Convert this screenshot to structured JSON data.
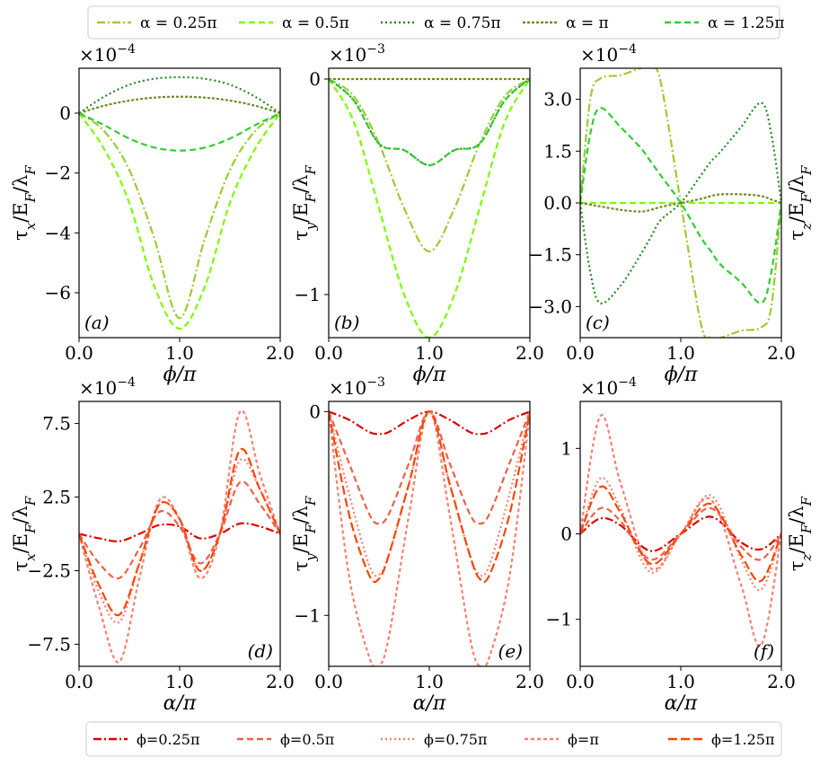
{
  "legend_top": {
    "entries": [
      {
        "label": "α = 0.25π",
        "color": "#9ACD32",
        "dash": "dashdot"
      },
      {
        "label": "α = 0.5π",
        "color": "#7CFC00",
        "dash": "dashed"
      },
      {
        "label": "α = 0.75π",
        "color": "#228B22",
        "dash": "dotted"
      },
      {
        "label": "α = π",
        "color": "#6B8E23",
        "dash": "dotted_dense"
      },
      {
        "label": "α = 1.25π",
        "color": "#32CD32",
        "dash": "dashed"
      }
    ]
  },
  "legend_bottom": {
    "entries": [
      {
        "label": "ϕ=0.25π",
        "color": "#DD0000",
        "dash": "dashdot"
      },
      {
        "label": "ϕ=0.5π",
        "color": "#F06048",
        "dash": "dashed"
      },
      {
        "label": "ϕ=0.75π",
        "color": "#FA8072",
        "dash": "dotted"
      },
      {
        "label": "ϕ=π",
        "color": "#FA8072",
        "dash": "dashed_fine"
      },
      {
        "label": "ϕ=1.25π",
        "color": "#FF4500",
        "dash": "dashed_long"
      }
    ]
  },
  "chart_data": [
    {
      "id": "a",
      "type": "line",
      "panel_label": "(a)",
      "xlabel": "ϕ/π",
      "ylabel": "τx/EF/λF",
      "ylabel_side": "left",
      "multiplier": "×10",
      "multiplier_exp": "−4",
      "xlim": [
        0,
        2
      ],
      "ylim": [
        -7.5,
        1.5
      ],
      "xticks": [
        0,
        1,
        2
      ],
      "xtick_labels": [
        "0.0",
        "1.0",
        "2.0"
      ],
      "yticks": [
        0,
        -2,
        -4,
        -6
      ],
      "ytick_labels": [
        "0",
        "−2",
        "−4",
        "−6"
      ],
      "x": [
        0,
        0.25,
        0.5,
        0.75,
        1.0,
        1.25,
        1.5,
        1.75,
        2.0
      ],
      "series": [
        {
          "name": "α = 0.25π",
          "values": [
            0,
            -0.6,
            -1.9,
            -4.2,
            -6.85,
            -4.2,
            -1.9,
            -0.6,
            0
          ]
        },
        {
          "name": "α = 0.5π",
          "values": [
            0,
            -1.2,
            -3.0,
            -5.8,
            -7.2,
            -5.8,
            -3.0,
            -1.2,
            0
          ]
        },
        {
          "name": "α = 0.75π",
          "values": [
            0,
            0.55,
            0.95,
            1.15,
            1.2,
            1.15,
            0.95,
            0.55,
            0
          ]
        },
        {
          "name": "α = π",
          "values": [
            0,
            0.25,
            0.42,
            0.52,
            0.55,
            0.52,
            0.42,
            0.25,
            0
          ]
        },
        {
          "name": "α = 1.25π",
          "values": [
            0,
            -0.4,
            -0.85,
            -1.15,
            -1.25,
            -1.15,
            -0.85,
            -0.4,
            0
          ]
        }
      ]
    },
    {
      "id": "b",
      "type": "line",
      "panel_label": "(b)",
      "xlabel": "ϕ/π",
      "ylabel": "τy/EF/λF",
      "ylabel_side": "left",
      "multiplier": "×10",
      "multiplier_exp": "−3",
      "xlim": [
        0,
        2
      ],
      "ylim": [
        -1.2,
        0.05
      ],
      "xticks": [
        0,
        1,
        2
      ],
      "xtick_labels": [
        "0.0",
        "1.0",
        "2.0"
      ],
      "yticks": [
        0,
        -1
      ],
      "ytick_labels": [
        "0",
        "−1"
      ],
      "x": [
        0,
        0.25,
        0.5,
        0.75,
        1.0,
        1.25,
        1.5,
        1.75,
        2.0
      ],
      "series": [
        {
          "name": "α = 0.25π",
          "values": [
            0,
            -0.08,
            -0.3,
            -0.6,
            -0.8,
            -0.6,
            -0.3,
            -0.08,
            0
          ]
        },
        {
          "name": "α = 0.5π",
          "values": [
            0,
            -0.2,
            -0.6,
            -1.0,
            -1.2,
            -1.0,
            -0.6,
            -0.2,
            0
          ]
        },
        {
          "name": "α = 0.75π",
          "values": [
            0,
            -0.1,
            -0.3,
            -0.33,
            -0.4,
            -0.33,
            -0.3,
            -0.1,
            0
          ]
        },
        {
          "name": "α = π",
          "values": [
            0,
            0,
            0,
            0,
            0,
            0,
            0,
            0,
            0
          ]
        },
        {
          "name": "α = 1.25π",
          "values": [
            0,
            -0.1,
            -0.3,
            -0.33,
            -0.4,
            -0.33,
            -0.3,
            -0.1,
            0
          ]
        }
      ]
    },
    {
      "id": "c",
      "type": "line",
      "panel_label": "(c)",
      "xlabel": "ϕ/π",
      "ylabel": "τz/EF/λF",
      "ylabel_side": "right",
      "multiplier": "×10",
      "multiplier_exp": "−4",
      "xlim": [
        0,
        2
      ],
      "ylim": [
        -3.9,
        3.9
      ],
      "xticks": [
        0,
        1,
        2
      ],
      "xtick_labels": [
        "0.0",
        "1.0",
        "2.0"
      ],
      "yticks": [
        3,
        1.5,
        0,
        -1.5,
        -3
      ],
      "ytick_labels": [
        "3.0",
        "1.5",
        "0.0",
        "−1.5",
        "−3.0"
      ],
      "x": [
        0,
        0.1,
        0.2,
        0.4,
        0.6,
        0.7,
        0.8,
        1.0,
        1.2,
        1.3,
        1.4,
        1.6,
        1.8,
        1.9,
        2.0
      ],
      "series": [
        {
          "name": "α = 0.25π",
          "values": [
            0,
            3.0,
            3.6,
            3.7,
            3.9,
            3.9,
            3.5,
            0,
            -3.5,
            -3.9,
            -3.9,
            -3.7,
            -3.6,
            -3.0,
            0
          ]
        },
        {
          "name": "α = 0.5π",
          "values": [
            0,
            0,
            0,
            0,
            0,
            0,
            0,
            0,
            0,
            0,
            0,
            0,
            0,
            0,
            0
          ]
        },
        {
          "name": "α = 0.75π",
          "values": [
            0,
            -2.0,
            -2.9,
            -2.4,
            -1.5,
            -1.0,
            -0.5,
            0,
            0.8,
            1.2,
            1.5,
            2.2,
            2.9,
            2.0,
            0
          ]
        },
        {
          "name": "α = π",
          "values": [
            0,
            -0.05,
            -0.1,
            -0.2,
            -0.25,
            -0.2,
            -0.12,
            0,
            0.12,
            0.2,
            0.25,
            0.25,
            0.2,
            0.1,
            0
          ]
        },
        {
          "name": "α = 1.25π",
          "values": [
            0,
            2.0,
            2.75,
            2.2,
            1.6,
            1.2,
            0.8,
            0,
            -1.0,
            -1.4,
            -1.8,
            -2.3,
            -2.9,
            -2.0,
            0
          ]
        }
      ]
    },
    {
      "id": "d",
      "type": "line",
      "panel_label": "(d)",
      "xlabel": "α/π",
      "ylabel": "τx/EF/λF",
      "ylabel_side": "left",
      "multiplier": "×10",
      "multiplier_exp": "−4",
      "xlim": [
        0,
        2
      ],
      "ylim": [
        -9,
        9
      ],
      "xticks": [
        0,
        1,
        2
      ],
      "xtick_labels": [
        "0.0",
        "1.0",
        "2.0"
      ],
      "yticks": [
        7.5,
        2.5,
        -2.5,
        -7.5
      ],
      "ytick_labels": [
        "7.5",
        "2.5",
        "−2.5",
        "−7.5"
      ],
      "x": [
        0,
        0.2,
        0.4,
        0.6,
        0.8,
        1.0,
        1.2,
        1.4,
        1.6,
        1.8,
        2.0
      ],
      "series": [
        {
          "name": "ϕ=0.25π",
          "values": [
            0,
            -0.3,
            -0.5,
            0,
            0.6,
            0.5,
            -0.3,
            0,
            0.7,
            0.5,
            0
          ]
        },
        {
          "name": "ϕ=0.5π",
          "values": [
            0,
            -2,
            -3,
            -1,
            1.5,
            0.5,
            -2,
            0,
            3.5,
            2,
            0
          ]
        },
        {
          "name": "ϕ=0.75π",
          "values": [
            0,
            -4,
            -6,
            -2,
            2,
            1,
            -2.5,
            0,
            5,
            3,
            0
          ]
        },
        {
          "name": "ϕ=π",
          "values": [
            0,
            -5,
            -8.7,
            -3,
            2.3,
            1,
            -3,
            0,
            8.3,
            4,
            0
          ]
        },
        {
          "name": "ϕ=1.25π",
          "values": [
            0,
            -3.5,
            -5.5,
            -2,
            2,
            1,
            -2.5,
            0,
            5.7,
            3,
            0
          ]
        }
      ]
    },
    {
      "id": "e",
      "type": "line",
      "panel_label": "(e)",
      "xlabel": "α/π",
      "ylabel": "τy/EF/λF",
      "ylabel_side": "left",
      "multiplier": "×10",
      "multiplier_exp": "−3",
      "xlim": [
        0,
        2
      ],
      "ylim": [
        -1.25,
        0.05
      ],
      "xticks": [
        0,
        1,
        2
      ],
      "xtick_labels": [
        "0.0",
        "1.0",
        "2.0"
      ],
      "yticks": [
        0,
        -1
      ],
      "ytick_labels": [
        "0",
        "−1"
      ],
      "x": [
        0,
        0.2,
        0.4,
        0.5,
        0.6,
        0.8,
        1.0,
        1.2,
        1.4,
        1.5,
        1.6,
        1.8,
        2.0
      ],
      "series": [
        {
          "name": "ϕ=0.25π",
          "values": [
            0,
            -0.04,
            -0.1,
            -0.11,
            -0.1,
            -0.04,
            0,
            -0.04,
            -0.1,
            -0.11,
            -0.1,
            -0.04,
            0
          ]
        },
        {
          "name": "ϕ=0.5π",
          "values": [
            0,
            -0.25,
            -0.5,
            -0.55,
            -0.5,
            -0.25,
            0,
            -0.25,
            -0.5,
            -0.55,
            -0.5,
            -0.25,
            0
          ]
        },
        {
          "name": "ϕ=0.75π",
          "values": [
            0,
            -0.4,
            -0.75,
            -0.8,
            -0.7,
            -0.35,
            0,
            -0.35,
            -0.7,
            -0.8,
            -0.75,
            -0.4,
            0
          ]
        },
        {
          "name": "ϕ=π",
          "values": [
            0,
            -0.8,
            -1.2,
            -1.25,
            -1.1,
            -0.5,
            0,
            -0.5,
            -1.1,
            -1.25,
            -1.2,
            -0.8,
            0
          ]
        },
        {
          "name": "ϕ=1.25π",
          "values": [
            0,
            -0.5,
            -0.8,
            -0.82,
            -0.7,
            -0.35,
            0,
            -0.35,
            -0.7,
            -0.82,
            -0.8,
            -0.5,
            0
          ]
        }
      ]
    },
    {
      "id": "f",
      "type": "line",
      "panel_label": "(f)",
      "xlabel": "α/π",
      "ylabel": "τz/EF/λF",
      "ylabel_side": "right",
      "multiplier": "×10",
      "multiplier_exp": "−4",
      "xlim": [
        0,
        2
      ],
      "ylim": [
        -1.55,
        1.55
      ],
      "xticks": [
        0,
        1,
        2
      ],
      "xtick_labels": [
        "0.0",
        "1.0",
        "2.0"
      ],
      "yticks": [
        1,
        0,
        -1
      ],
      "ytick_labels": [
        "1",
        "0",
        "−1"
      ],
      "x": [
        0,
        0.2,
        0.4,
        0.7,
        1.0,
        1.3,
        1.6,
        1.8,
        2.0
      ],
      "series": [
        {
          "name": "ϕ=0.25π",
          "values": [
            0,
            0.18,
            0.1,
            -0.2,
            0,
            0.2,
            -0.1,
            -0.18,
            0
          ]
        },
        {
          "name": "ϕ=0.5π",
          "values": [
            0,
            0.3,
            0.15,
            -0.3,
            0,
            0.3,
            -0.15,
            -0.3,
            0
          ]
        },
        {
          "name": "ϕ=0.75π",
          "values": [
            0,
            0.65,
            0.3,
            -0.45,
            0,
            0.45,
            -0.3,
            -0.65,
            0
          ]
        },
        {
          "name": "ϕ=π",
          "values": [
            0,
            1.38,
            0.6,
            -0.4,
            0,
            0.4,
            -0.6,
            -1.3,
            0
          ]
        },
        {
          "name": "ϕ=1.25π",
          "values": [
            0,
            0.55,
            0.25,
            -0.35,
            0,
            0.35,
            -0.25,
            -0.55,
            0
          ]
        }
      ]
    }
  ]
}
